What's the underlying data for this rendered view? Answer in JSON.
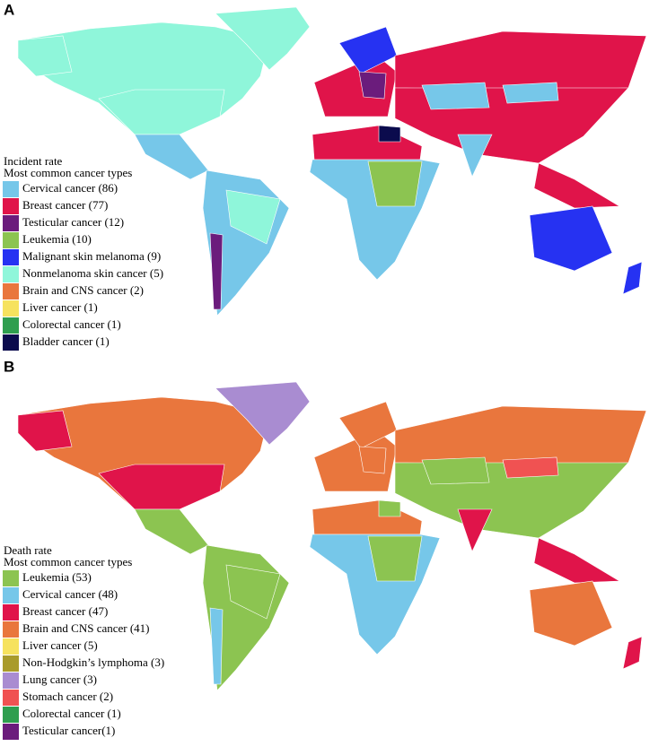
{
  "panel_a": {
    "label": "A",
    "legend": {
      "title": "Incident rate",
      "subtitle": "Most common cancer types",
      "items": [
        {
          "label": "Cervical cancer (86)",
          "color": "#76c7e9"
        },
        {
          "label": "Breast cancer (77)",
          "color": "#e0144a"
        },
        {
          "label": "Testicular cancer (12)",
          "color": "#6b1c7c"
        },
        {
          "label": "Leukemia (10)",
          "color": "#8cc451"
        },
        {
          "label": "Malignant skin melanoma (9)",
          "color": "#2632f2"
        },
        {
          "label": "Nonmelanoma skin cancer (5)",
          "color": "#8ff6da"
        },
        {
          "label": "Brain and CNS cancer (2)",
          "color": "#e9763d"
        },
        {
          "label": "Liver cancer (1)",
          "color": "#f6e25e"
        },
        {
          "label": "Colorectal cancer (1)",
          "color": "#2f9e4f"
        },
        {
          "label": "Bladder cancer (1)",
          "color": "#0b0b4d"
        }
      ]
    }
  },
  "panel_b": {
    "label": "B",
    "legend": {
      "title": "Death rate",
      "subtitle": "Most common cancer types",
      "items": [
        {
          "label": "Leukemia (53)",
          "color": "#8cc451"
        },
        {
          "label": "Cervical cancer (48)",
          "color": "#76c7e9"
        },
        {
          "label": "Breast cancer (47)",
          "color": "#e0144a"
        },
        {
          "label": "Brain and CNS cancer (41)",
          "color": "#e9763d"
        },
        {
          "label": "Liver cancer (5)",
          "color": "#f6e25e"
        },
        {
          "label": "Non-Hodgkin’s lymphoma (3)",
          "color": "#a99b2b"
        },
        {
          "label": "Lung cancer (3)",
          "color": "#a98cd1"
        },
        {
          "label": "Stomach cancer (2)",
          "color": "#f05252"
        },
        {
          "label": "Colorectal cancer (1)",
          "color": "#2f9e4f"
        },
        {
          "label": "Testicular cancer(1)",
          "color": "#6b1c7c"
        }
      ]
    }
  }
}
